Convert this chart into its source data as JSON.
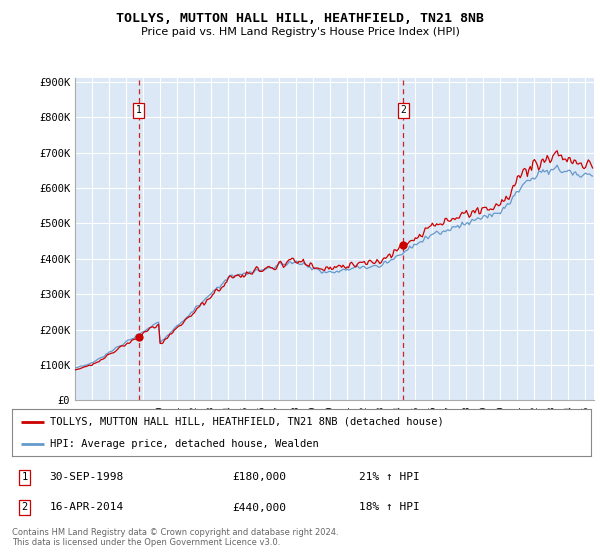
{
  "title": "TOLLYS, MUTTON HALL HILL, HEATHFIELD, TN21 8NB",
  "subtitle": "Price paid vs. HM Land Registry's House Price Index (HPI)",
  "ylim": [
    0,
    900000
  ],
  "yticks": [
    0,
    100000,
    200000,
    300000,
    400000,
    500000,
    600000,
    700000,
    800000,
    900000
  ],
  "ytick_labels": [
    "£0",
    "£100K",
    "£200K",
    "£300K",
    "£400K",
    "£500K",
    "£600K",
    "£700K",
    "£800K",
    "£900K"
  ],
  "plot_bg_color": "#dce8f5",
  "grid_color": "#ffffff",
  "purchase1_date": 1998.75,
  "purchase1_price": 180000,
  "purchase1_label": "1",
  "purchase1_text": "30-SEP-1998",
  "purchase1_amount": "£180,000",
  "purchase1_hpi": "21% ↑ HPI",
  "purchase2_date": 2014.29,
  "purchase2_price": 440000,
  "purchase2_label": "2",
  "purchase2_text": "16-APR-2014",
  "purchase2_amount": "£440,000",
  "purchase2_hpi": "18% ↑ HPI",
  "legend_line1": "TOLLYS, MUTTON HALL HILL, HEATHFIELD, TN21 8NB (detached house)",
  "legend_line2": "HPI: Average price, detached house, Wealden",
  "footnote": "Contains HM Land Registry data © Crown copyright and database right 2024.\nThis data is licensed under the Open Government Licence v3.0.",
  "line_color_property": "#cc0000",
  "line_color_hpi": "#6699cc",
  "xmin": 1995.0,
  "xmax": 2025.5
}
